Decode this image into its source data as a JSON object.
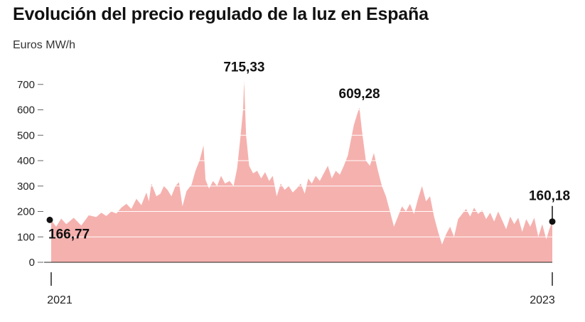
{
  "title": "Evolución del precio regulado de la luz en España",
  "unit_label": "Euros MW/h",
  "colors": {
    "area": "#f5b1ae",
    "grid": "#ffffff",
    "text": "#111111",
    "axis": "#222222"
  },
  "chart_data": {
    "type": "area",
    "ylabel": "Euros MW/h",
    "ylim": [
      0,
      730
    ],
    "yticks": [
      "0",
      "100",
      "200",
      "300",
      "400",
      "500",
      "600",
      "700"
    ],
    "x_range": [
      "2021",
      "2023"
    ],
    "x_tick_labels": [
      "2021",
      "2023"
    ],
    "grid": true,
    "annotations": [
      {
        "label": "166,77",
        "t": 0.0,
        "value": 166.77,
        "marker": true
      },
      {
        "label": "715,33",
        "t": 0.385,
        "value": 715.33,
        "marker": false
      },
      {
        "label": "609,28",
        "t": 0.615,
        "value": 609.28,
        "marker": false
      },
      {
        "label": "160,18",
        "t": 1.0,
        "value": 160.18,
        "marker": true
      }
    ],
    "series_points": [
      [
        0.0,
        166
      ],
      [
        0.01,
        140
      ],
      [
        0.02,
        172
      ],
      [
        0.03,
        150
      ],
      [
        0.045,
        175
      ],
      [
        0.06,
        145
      ],
      [
        0.075,
        185
      ],
      [
        0.09,
        178
      ],
      [
        0.1,
        195
      ],
      [
        0.11,
        182
      ],
      [
        0.12,
        200
      ],
      [
        0.13,
        192
      ],
      [
        0.14,
        215
      ],
      [
        0.15,
        230
      ],
      [
        0.16,
        210
      ],
      [
        0.17,
        250
      ],
      [
        0.18,
        225
      ],
      [
        0.19,
        275
      ],
      [
        0.195,
        240
      ],
      [
        0.2,
        310
      ],
      [
        0.205,
        285
      ],
      [
        0.21,
        260
      ],
      [
        0.218,
        270
      ],
      [
        0.225,
        300
      ],
      [
        0.232,
        285
      ],
      [
        0.24,
        260
      ],
      [
        0.248,
        300
      ],
      [
        0.255,
        315
      ],
      [
        0.262,
        220
      ],
      [
        0.27,
        280
      ],
      [
        0.28,
        305
      ],
      [
        0.288,
        360
      ],
      [
        0.296,
        400
      ],
      [
        0.304,
        460
      ],
      [
        0.308,
        325
      ],
      [
        0.315,
        290
      ],
      [
        0.323,
        320
      ],
      [
        0.331,
        300
      ],
      [
        0.339,
        340
      ],
      [
        0.347,
        310
      ],
      [
        0.356,
        320
      ],
      [
        0.364,
        300
      ],
      [
        0.371,
        370
      ],
      [
        0.377,
        480
      ],
      [
        0.383,
        600
      ],
      [
        0.385,
        715
      ],
      [
        0.389,
        500
      ],
      [
        0.395,
        380
      ],
      [
        0.403,
        350
      ],
      [
        0.411,
        360
      ],
      [
        0.419,
        330
      ],
      [
        0.427,
        355
      ],
      [
        0.435,
        320
      ],
      [
        0.442,
        340
      ],
      [
        0.45,
        260
      ],
      [
        0.458,
        310
      ],
      [
        0.466,
        285
      ],
      [
        0.474,
        300
      ],
      [
        0.482,
        275
      ],
      [
        0.49,
        290
      ],
      [
        0.498,
        310
      ],
      [
        0.506,
        270
      ],
      [
        0.513,
        330
      ],
      [
        0.52,
        310
      ],
      [
        0.528,
        340
      ],
      [
        0.536,
        320
      ],
      [
        0.544,
        350
      ],
      [
        0.552,
        380
      ],
      [
        0.56,
        330
      ],
      [
        0.568,
        360
      ],
      [
        0.576,
        345
      ],
      [
        0.584,
        380
      ],
      [
        0.592,
        420
      ],
      [
        0.598,
        480
      ],
      [
        0.604,
        540
      ],
      [
        0.61,
        580
      ],
      [
        0.615,
        609
      ],
      [
        0.62,
        520
      ],
      [
        0.628,
        400
      ],
      [
        0.636,
        380
      ],
      [
        0.644,
        430
      ],
      [
        0.652,
        360
      ],
      [
        0.66,
        300
      ],
      [
        0.668,
        260
      ],
      [
        0.676,
        200
      ],
      [
        0.684,
        140
      ],
      [
        0.692,
        180
      ],
      [
        0.7,
        220
      ],
      [
        0.708,
        200
      ],
      [
        0.716,
        230
      ],
      [
        0.724,
        190
      ],
      [
        0.732,
        250
      ],
      [
        0.74,
        300
      ],
      [
        0.748,
        240
      ],
      [
        0.756,
        260
      ],
      [
        0.764,
        180
      ],
      [
        0.772,
        120
      ],
      [
        0.78,
        70
      ],
      [
        0.788,
        110
      ],
      [
        0.796,
        140
      ],
      [
        0.804,
        100
      ],
      [
        0.812,
        170
      ],
      [
        0.82,
        190
      ],
      [
        0.828,
        210
      ],
      [
        0.836,
        180
      ],
      [
        0.844,
        215
      ],
      [
        0.852,
        190
      ],
      [
        0.86,
        205
      ],
      [
        0.868,
        170
      ],
      [
        0.876,
        195
      ],
      [
        0.884,
        160
      ],
      [
        0.892,
        200
      ],
      [
        0.9,
        165
      ],
      [
        0.908,
        130
      ],
      [
        0.916,
        180
      ],
      [
        0.924,
        150
      ],
      [
        0.932,
        175
      ],
      [
        0.94,
        120
      ],
      [
        0.948,
        170
      ],
      [
        0.956,
        140
      ],
      [
        0.964,
        175
      ],
      [
        0.972,
        100
      ],
      [
        0.98,
        150
      ],
      [
        0.988,
        90
      ],
      [
        0.994,
        130
      ],
      [
        1.0,
        160
      ]
    ]
  }
}
